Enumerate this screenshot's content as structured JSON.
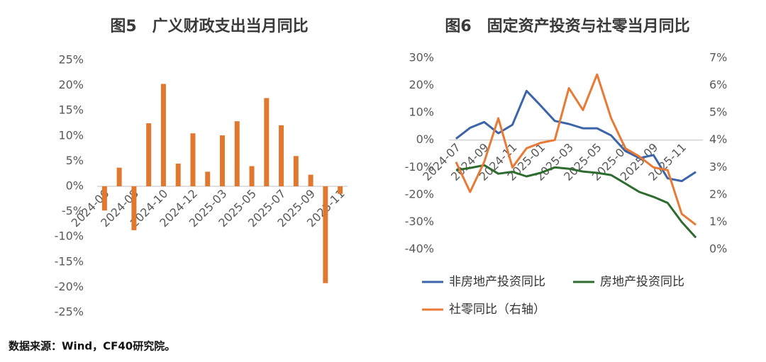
{
  "chart_data": [
    {
      "type": "bar",
      "title": "图5　广义财政支出当月同比",
      "categories": [
        "2024-06",
        null,
        "2024-08",
        null,
        "2024-10",
        null,
        "2024-12",
        null,
        "2025-03",
        null,
        "2025-05",
        null,
        "2025-07",
        null,
        "2025-09",
        null,
        "2025-11"
      ],
      "values": [
        -4.8,
        3.7,
        -8.7,
        12.5,
        20.3,
        4.5,
        10.5,
        2.9,
        10.1,
        12.9,
        4.0,
        17.5,
        12.1,
        6.0,
        2.3,
        -19.2,
        -1.5
      ],
      "color": "#e0792f",
      "ylim": [
        -25,
        25
      ],
      "yticks": [
        {
          "value": -25,
          "label": "-25%"
        },
        {
          "value": -20,
          "label": "-20%"
        },
        {
          "value": -15,
          "label": "-15%"
        },
        {
          "value": -10,
          "label": "-10%"
        },
        {
          "value": -5,
          "label": "-5%"
        },
        {
          "value": 0,
          "label": "0%"
        },
        {
          "value": 5,
          "label": "5%"
        },
        {
          "value": 10,
          "label": "10%"
        },
        {
          "value": 15,
          "label": "15%"
        },
        {
          "value": 20,
          "label": "20%"
        },
        {
          "value": 25,
          "label": "25%"
        }
      ]
    },
    {
      "type": "line",
      "title": "图6　固定资产投资与社零当月同比",
      "categories": [
        "2024-07",
        null,
        "2024-09",
        null,
        "2024-11",
        null,
        "2025-01",
        null,
        "2025-03",
        null,
        "2025-05",
        null,
        "2025-07",
        null,
        "2025-09",
        null,
        "2025-11",
        null
      ],
      "series": [
        {
          "name": "非房地产投资同比",
          "color": "#3c64a8",
          "values": [
            0.5,
            4.5,
            6.6,
            2.5,
            5.6,
            18.0,
            12.6,
            7.0,
            5.9,
            4.3,
            4.3,
            1.7,
            -4.0,
            -6.6,
            -5.5,
            -14.0,
            -15.0,
            -11.7
          ]
        },
        {
          "name": "房地产投资同比",
          "color": "#2e6b2e",
          "values": [
            -11.0,
            -10.2,
            -9.2,
            -12.3,
            -11.6,
            -13.3,
            -12.0,
            -10.0,
            -10.5,
            -11.5,
            -12.0,
            -12.8,
            -15.9,
            -19.0,
            -20.8,
            -23.0,
            -30.0,
            -35.7
          ]
        },
        {
          "name": "社零同比（右轴）",
          "color": "#e87a35",
          "axis": "y2",
          "values": [
            3.2,
            2.1,
            3.2,
            4.8,
            3.0,
            3.7,
            3.9,
            4.0,
            5.9,
            5.1,
            6.4,
            4.8,
            3.7,
            3.4,
            3.0,
            2.9,
            1.3,
            0.9
          ]
        }
      ],
      "ylim": [
        -40,
        30
      ],
      "yticks": [
        {
          "value": -40,
          "label": "-40%"
        },
        {
          "value": -30,
          "label": "-30%"
        },
        {
          "value": -20,
          "label": "-20%"
        },
        {
          "value": -10,
          "label": "-10%"
        },
        {
          "value": 0,
          "label": "0%"
        },
        {
          "value": 10,
          "label": "10%"
        },
        {
          "value": 20,
          "label": "20%"
        },
        {
          "value": 30,
          "label": "30%"
        }
      ],
      "y2lim": [
        0,
        7
      ],
      "y2ticks": [
        {
          "value": 0,
          "label": "0%"
        },
        {
          "value": 1,
          "label": "1%"
        },
        {
          "value": 2,
          "label": "2%"
        },
        {
          "value": 3,
          "label": "3%"
        },
        {
          "value": 4,
          "label": "4%"
        },
        {
          "value": 5,
          "label": "5%"
        },
        {
          "value": 6,
          "label": "6%"
        },
        {
          "value": 7,
          "label": "7%"
        }
      ],
      "legend": "bottom"
    }
  ],
  "source": "数据来源：Wind，CF40研究院。"
}
